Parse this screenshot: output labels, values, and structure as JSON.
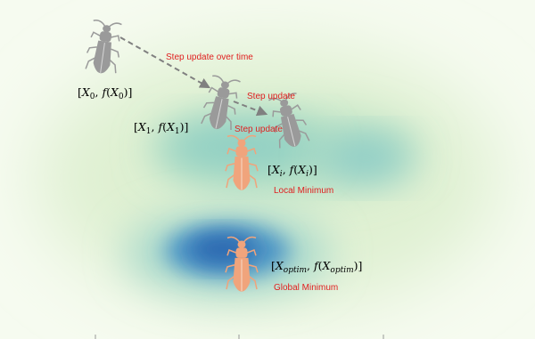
{
  "labels": {
    "step_over_time": "Step update over time",
    "step_update_1": "Step update",
    "step_update_2": "Step update",
    "local_minimum": "Local Minimum",
    "global_minimum": "Global Minimum"
  },
  "points": {
    "x0": {
      "open": "[",
      "v1": "X",
      "s1": "0",
      "sep": ", ",
      "f": "f",
      "lp": "(",
      "v2": "X",
      "s2": "0",
      "close": ")]"
    },
    "x1": {
      "open": "[",
      "v1": "X",
      "s1": "1",
      "sep": ", ",
      "f": "f",
      "lp": "(",
      "v2": "X",
      "s2": "1",
      "close": ")]"
    },
    "xi": {
      "open": "[",
      "v1": "X",
      "s1": "i",
      "sep": ", ",
      "f": "f",
      "lp": "(",
      "v2": "X",
      "s2": "i",
      "close": ")]"
    },
    "xopt": {
      "open": "[",
      "v1": "X",
      "s1": "optim",
      "sep": ", ",
      "f": "f",
      "lp": "(",
      "v2": "X",
      "s2": "optim",
      "close": ")]"
    }
  },
  "colors": {
    "bug_gray": "#9a9a9a",
    "bug_orange": "#f0a47c",
    "label_red": "#e02020",
    "arrow_gray": "#808080",
    "field_light": "#e9f4dc",
    "field_mid": "#7fc6c0",
    "field_deep": "#2e72b6"
  }
}
